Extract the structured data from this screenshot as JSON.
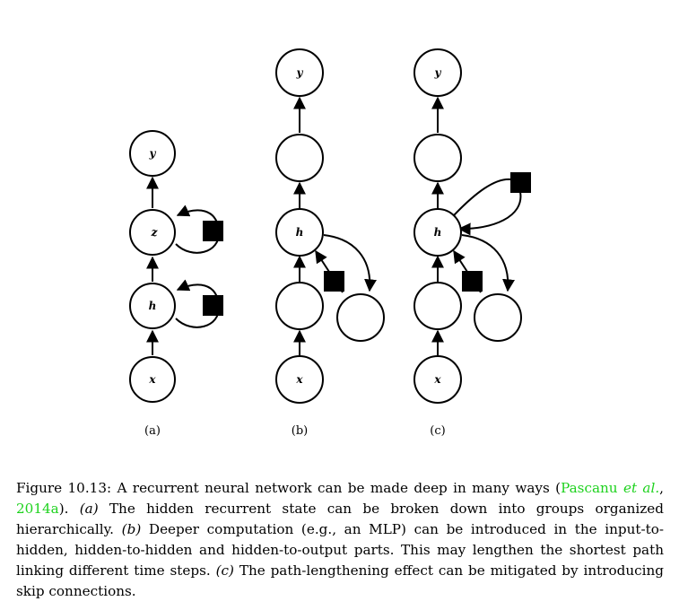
{
  "figure": {
    "panels": [
      {
        "label": "(a)",
        "nodes": [
          "y",
          "z",
          "h",
          "x"
        ],
        "recurrent_squares": 2
      },
      {
        "label": "(b)",
        "nodes": [
          "y",
          "",
          "h",
          "",
          "",
          "x"
        ],
        "recurrent_squares": 1
      },
      {
        "label": "(c)",
        "nodes": [
          "y",
          "",
          "h",
          "",
          "",
          "x"
        ],
        "recurrent_squares": 2
      }
    ]
  },
  "caption": {
    "prefix": "Figure 10.13: A recurrent neural network can be made deep in many ways (",
    "cite_author": "Pascanu",
    "cite_etal": "et al.",
    "cite_sep": ", ",
    "cite_year": "2014a",
    "after_cite": "). ",
    "part_a_label": "(a)",
    "part_a_text": " The hidden recurrent state can be broken down into groups organized hierarchically. ",
    "part_b_label": "(b)",
    "part_b_text": " Deeper computation (e.g., an MLP) can be introduced in the input-to-hidden, hidden-to-hidden and hidden-to-output parts. This may lengthen the shortest path linking different time steps. ",
    "part_c_label": "(c)",
    "part_c_text": " The path-lengthening effect can be mitigated by introducing skip connections."
  }
}
